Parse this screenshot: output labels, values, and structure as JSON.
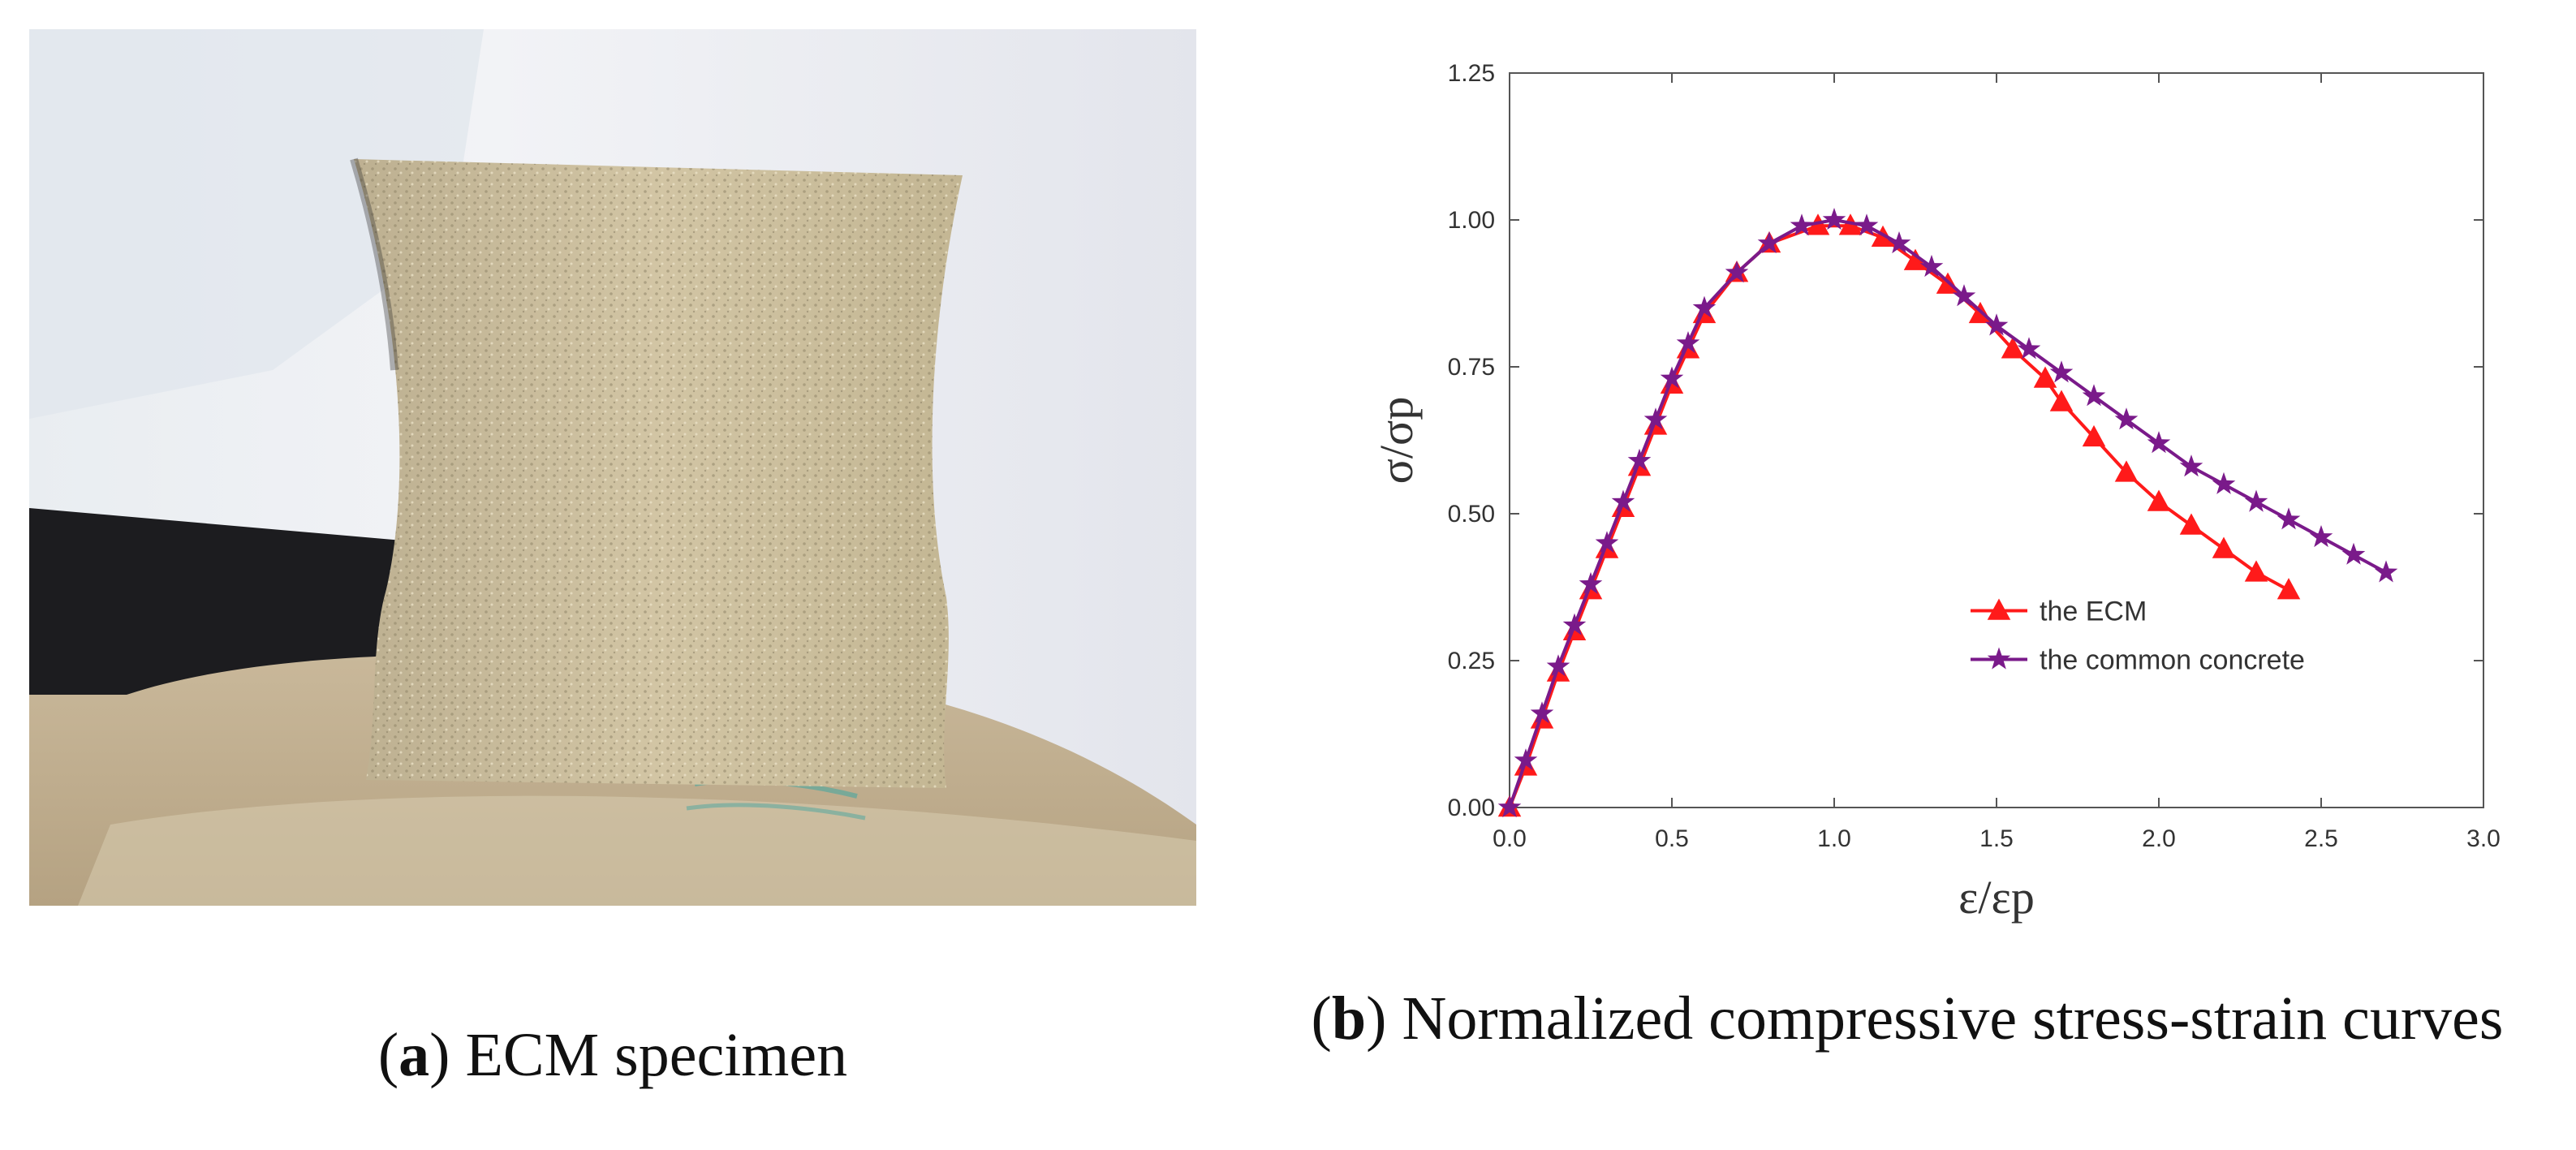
{
  "panel_a": {
    "caption_letter": "a",
    "caption_text": "ECM specimen"
  },
  "panel_b": {
    "caption_letter": "b",
    "caption_text": "Normalized compressive stress-strain curves"
  },
  "colors": {
    "ecm": "#ff1a1a",
    "common": "#7a1a8a",
    "axis": "#555555"
  },
  "chart_data": {
    "type": "line",
    "xlabel": "ε/εp",
    "ylabel": "σ/σp",
    "xlim": [
      0.0,
      3.0
    ],
    "ylim": [
      0.0,
      1.25
    ],
    "x_ticks": [
      "0.0",
      "0.5",
      "1.0",
      "1.5",
      "2.0",
      "2.5",
      "3.0"
    ],
    "y_ticks": [
      "0.00",
      "0.25",
      "0.50",
      "0.75",
      "1.00",
      "1.25"
    ],
    "legend_position": "center-right",
    "series": [
      {
        "name": "the ECM",
        "marker": "triangle",
        "x": [
          0.0,
          0.05,
          0.1,
          0.15,
          0.2,
          0.25,
          0.3,
          0.35,
          0.4,
          0.45,
          0.5,
          0.55,
          0.6,
          0.7,
          0.8,
          0.95,
          1.05,
          1.15,
          1.25,
          1.35,
          1.45,
          1.55,
          1.65,
          1.7,
          1.8,
          1.9,
          2.0,
          2.1,
          2.2,
          2.3,
          2.4
        ],
        "y": [
          0.0,
          0.07,
          0.15,
          0.23,
          0.3,
          0.37,
          0.44,
          0.51,
          0.58,
          0.65,
          0.72,
          0.78,
          0.84,
          0.91,
          0.96,
          0.99,
          0.99,
          0.97,
          0.93,
          0.89,
          0.84,
          0.78,
          0.73,
          0.69,
          0.63,
          0.57,
          0.52,
          0.48,
          0.44,
          0.4,
          0.37
        ]
      },
      {
        "name": "the common concrete",
        "marker": "star",
        "x": [
          0.0,
          0.05,
          0.1,
          0.15,
          0.2,
          0.25,
          0.3,
          0.35,
          0.4,
          0.45,
          0.5,
          0.55,
          0.6,
          0.7,
          0.8,
          0.9,
          1.0,
          1.1,
          1.2,
          1.3,
          1.4,
          1.5,
          1.6,
          1.7,
          1.8,
          1.9,
          2.0,
          2.1,
          2.2,
          2.3,
          2.4,
          2.5,
          2.6,
          2.7
        ],
        "y": [
          0.0,
          0.08,
          0.16,
          0.24,
          0.31,
          0.38,
          0.45,
          0.52,
          0.59,
          0.66,
          0.73,
          0.79,
          0.85,
          0.91,
          0.96,
          0.99,
          1.0,
          0.99,
          0.96,
          0.92,
          0.87,
          0.82,
          0.78,
          0.74,
          0.7,
          0.66,
          0.62,
          0.58,
          0.55,
          0.52,
          0.49,
          0.46,
          0.43,
          0.4
        ]
      }
    ]
  }
}
